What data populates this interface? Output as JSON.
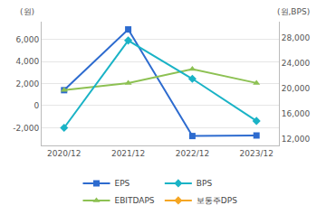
{
  "chart_data": {
    "type": "line",
    "ylabel": "(원)",
    "y2label": "(원,BPS)",
    "categories": [
      "2020/12",
      "2021/12",
      "2022/12",
      "2023/12"
    ],
    "series": [
      {
        "name": "EPS",
        "color": "#2d6bcf",
        "marker": "square",
        "values": [
          1400,
          6900,
          -2750,
          -2700
        ]
      },
      {
        "name": "BPS",
        "color": "#1ab3c6",
        "marker": "diamond",
        "axis": "y2",
        "values": [
          13700,
          27600,
          21500,
          14800
        ]
      },
      {
        "name": "EBITDAPS",
        "color": "#8dc153",
        "marker": "triangle-up",
        "values": [
          1400,
          2050,
          3300,
          2050
        ]
      },
      {
        "name": "보통주DPS",
        "color": "#f5a623",
        "marker": "diamond",
        "values": [
          null,
          null,
          null,
          null
        ]
      }
    ],
    "ylim": [
      -3600,
      7600
    ],
    "yticks": [
      {
        "value": -2000,
        "label": "-2,000"
      },
      0,
      {
        "value": 2000,
        "label": "2,000"
      },
      {
        "value": 4000,
        "label": "4,000"
      },
      {
        "value": 6000,
        "label": "6,000"
      }
    ],
    "y2lim": [
      10900,
      30600
    ],
    "y2ticks": [
      {
        "value": 12000,
        "label": "12,000"
      },
      {
        "value": 16000,
        "label": "16,000"
      },
      {
        "value": 20000,
        "label": "20,000"
      },
      {
        "value": 24000,
        "label": "24,000"
      },
      {
        "value": 28000,
        "label": "28,000"
      }
    ],
    "grid": true,
    "legend": "bottom"
  }
}
